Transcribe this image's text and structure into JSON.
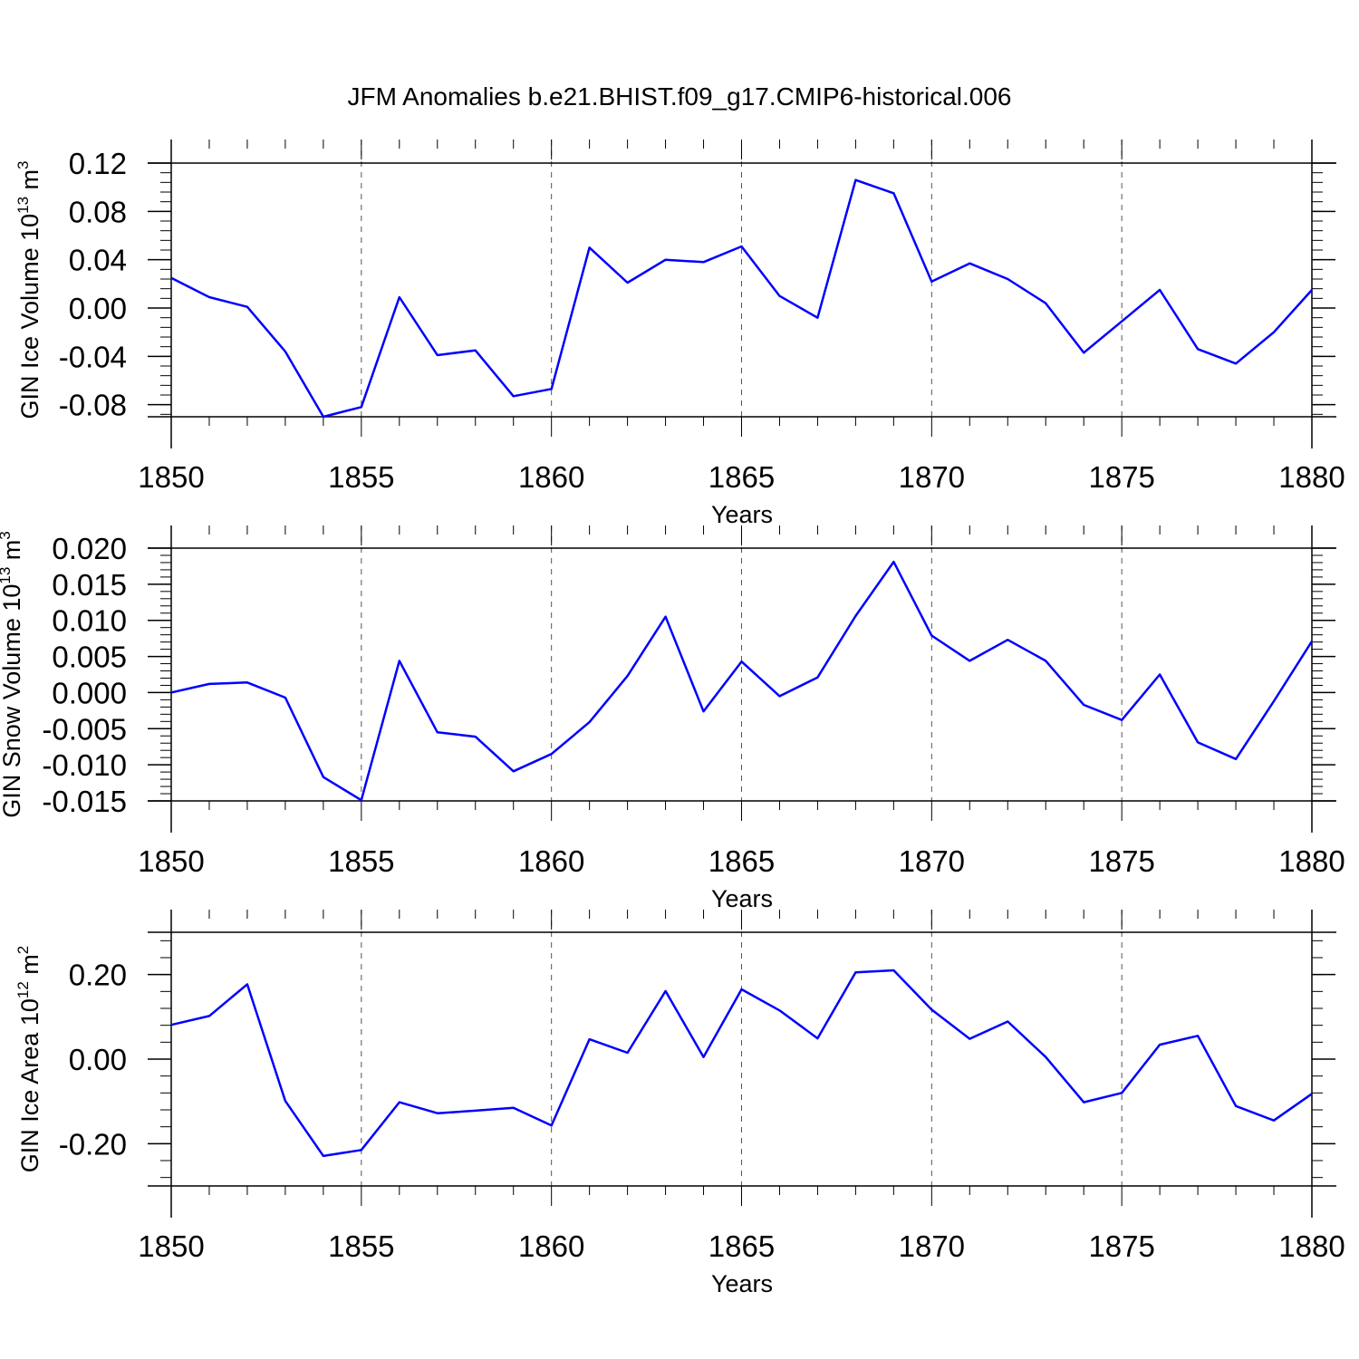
{
  "title": "JFM Anomalies b.e21.BHIST.f09_g17.CMIP6-historical.006",
  "colors": {
    "line": "#0000ff",
    "axis": "#000000",
    "grid": "#555555",
    "background": "#ffffff"
  },
  "chart_data": [
    {
      "type": "line",
      "xlabel": "Years",
      "ylabel": {
        "text": "GIN Ice Volume 10",
        "exp": "13",
        "unit": " m",
        "unit_exp": "3"
      },
      "xlim": [
        1850,
        1880
      ],
      "ylim": [
        -0.09,
        0.12
      ],
      "x_ticks": [
        1850,
        1855,
        1860,
        1865,
        1870,
        1875,
        1880
      ],
      "y_ticks": [
        "0.12",
        "0.08",
        "0.04",
        "0.00",
        "-0.04",
        "-0.08"
      ],
      "grid": "vertical dashed at major x ticks",
      "x": [
        1850,
        1851,
        1852,
        1853,
        1854,
        1855,
        1856,
        1857,
        1858,
        1859,
        1860,
        1861,
        1862,
        1863,
        1864,
        1865,
        1866,
        1867,
        1868,
        1869,
        1870,
        1871,
        1872,
        1873,
        1874,
        1875,
        1876,
        1877,
        1878,
        1879,
        1880
      ],
      "series": [
        {
          "values": [
            0.025,
            0.009,
            0.001,
            -0.036,
            -0.09,
            -0.082,
            0.009,
            -0.039,
            -0.035,
            -0.073,
            -0.067,
            0.05,
            0.021,
            0.04,
            0.038,
            0.051,
            0.01,
            -0.008,
            0.106,
            0.095,
            0.022,
            0.037,
            0.024,
            0.004,
            -0.037,
            -0.011,
            0.015,
            -0.034,
            -0.046,
            -0.02,
            0.015
          ]
        }
      ]
    },
    {
      "type": "line",
      "xlabel": "Years",
      "ylabel": {
        "text": "GIN Snow Volume 10",
        "exp": "13",
        "unit": " m",
        "unit_exp": "3"
      },
      "xlim": [
        1850,
        1880
      ],
      "ylim": [
        -0.015,
        0.02
      ],
      "x_ticks": [
        1850,
        1855,
        1860,
        1865,
        1870,
        1875,
        1880
      ],
      "y_ticks": [
        "0.020",
        "0.015",
        "0.010",
        "0.005",
        "0.000",
        "-0.005",
        "-0.010",
        "-0.015"
      ],
      "grid": "vertical dashed at major x ticks",
      "x": [
        1850,
        1851,
        1852,
        1853,
        1854,
        1855,
        1856,
        1857,
        1858,
        1859,
        1860,
        1861,
        1862,
        1863,
        1864,
        1865,
        1866,
        1867,
        1868,
        1869,
        1870,
        1871,
        1872,
        1873,
        1874,
        1875,
        1876,
        1877,
        1878,
        1879,
        1880
      ],
      "series": [
        {
          "values": [
            0.0,
            0.0012,
            0.0014,
            -0.0007,
            -0.0117,
            -0.0149,
            0.0044,
            -0.0055,
            -0.0061,
            -0.0109,
            -0.0085,
            -0.0041,
            0.0023,
            0.0105,
            -0.0026,
            0.0043,
            -0.0005,
            0.0021,
            0.0106,
            0.0181,
            0.0079,
            0.0044,
            0.0073,
            0.0044,
            -0.0017,
            -0.0038,
            0.0025,
            -0.0069,
            -0.0092,
            -0.0012,
            0.0071
          ]
        }
      ]
    },
    {
      "type": "line",
      "xlabel": "Years",
      "ylabel": {
        "text": "GIN Ice Area 10",
        "exp": "12",
        "unit": " m",
        "unit_exp": "2"
      },
      "xlim": [
        1850,
        1880
      ],
      "ylim": [
        -0.3,
        0.3
      ],
      "x_ticks": [
        1850,
        1855,
        1860,
        1865,
        1870,
        1875,
        1880
      ],
      "y_ticks": [
        "0.20",
        "0.00",
        "-0.20"
      ],
      "grid": "vertical dashed at major x ticks",
      "x": [
        1850,
        1851,
        1852,
        1853,
        1854,
        1855,
        1856,
        1857,
        1858,
        1859,
        1860,
        1861,
        1862,
        1863,
        1864,
        1865,
        1866,
        1867,
        1868,
        1869,
        1870,
        1871,
        1872,
        1873,
        1874,
        1875,
        1876,
        1877,
        1878,
        1879,
        1880
      ],
      "series": [
        {
          "values": [
            0.081,
            0.102,
            0.177,
            -0.099,
            -0.229,
            -0.215,
            -0.102,
            -0.128,
            -0.122,
            -0.115,
            -0.157,
            0.047,
            0.015,
            0.161,
            0.005,
            0.165,
            0.115,
            0.049,
            0.205,
            0.21,
            0.117,
            0.048,
            0.089,
            0.005,
            -0.102,
            -0.08,
            0.034,
            0.055,
            -0.111,
            -0.145,
            -0.082
          ]
        }
      ]
    }
  ]
}
